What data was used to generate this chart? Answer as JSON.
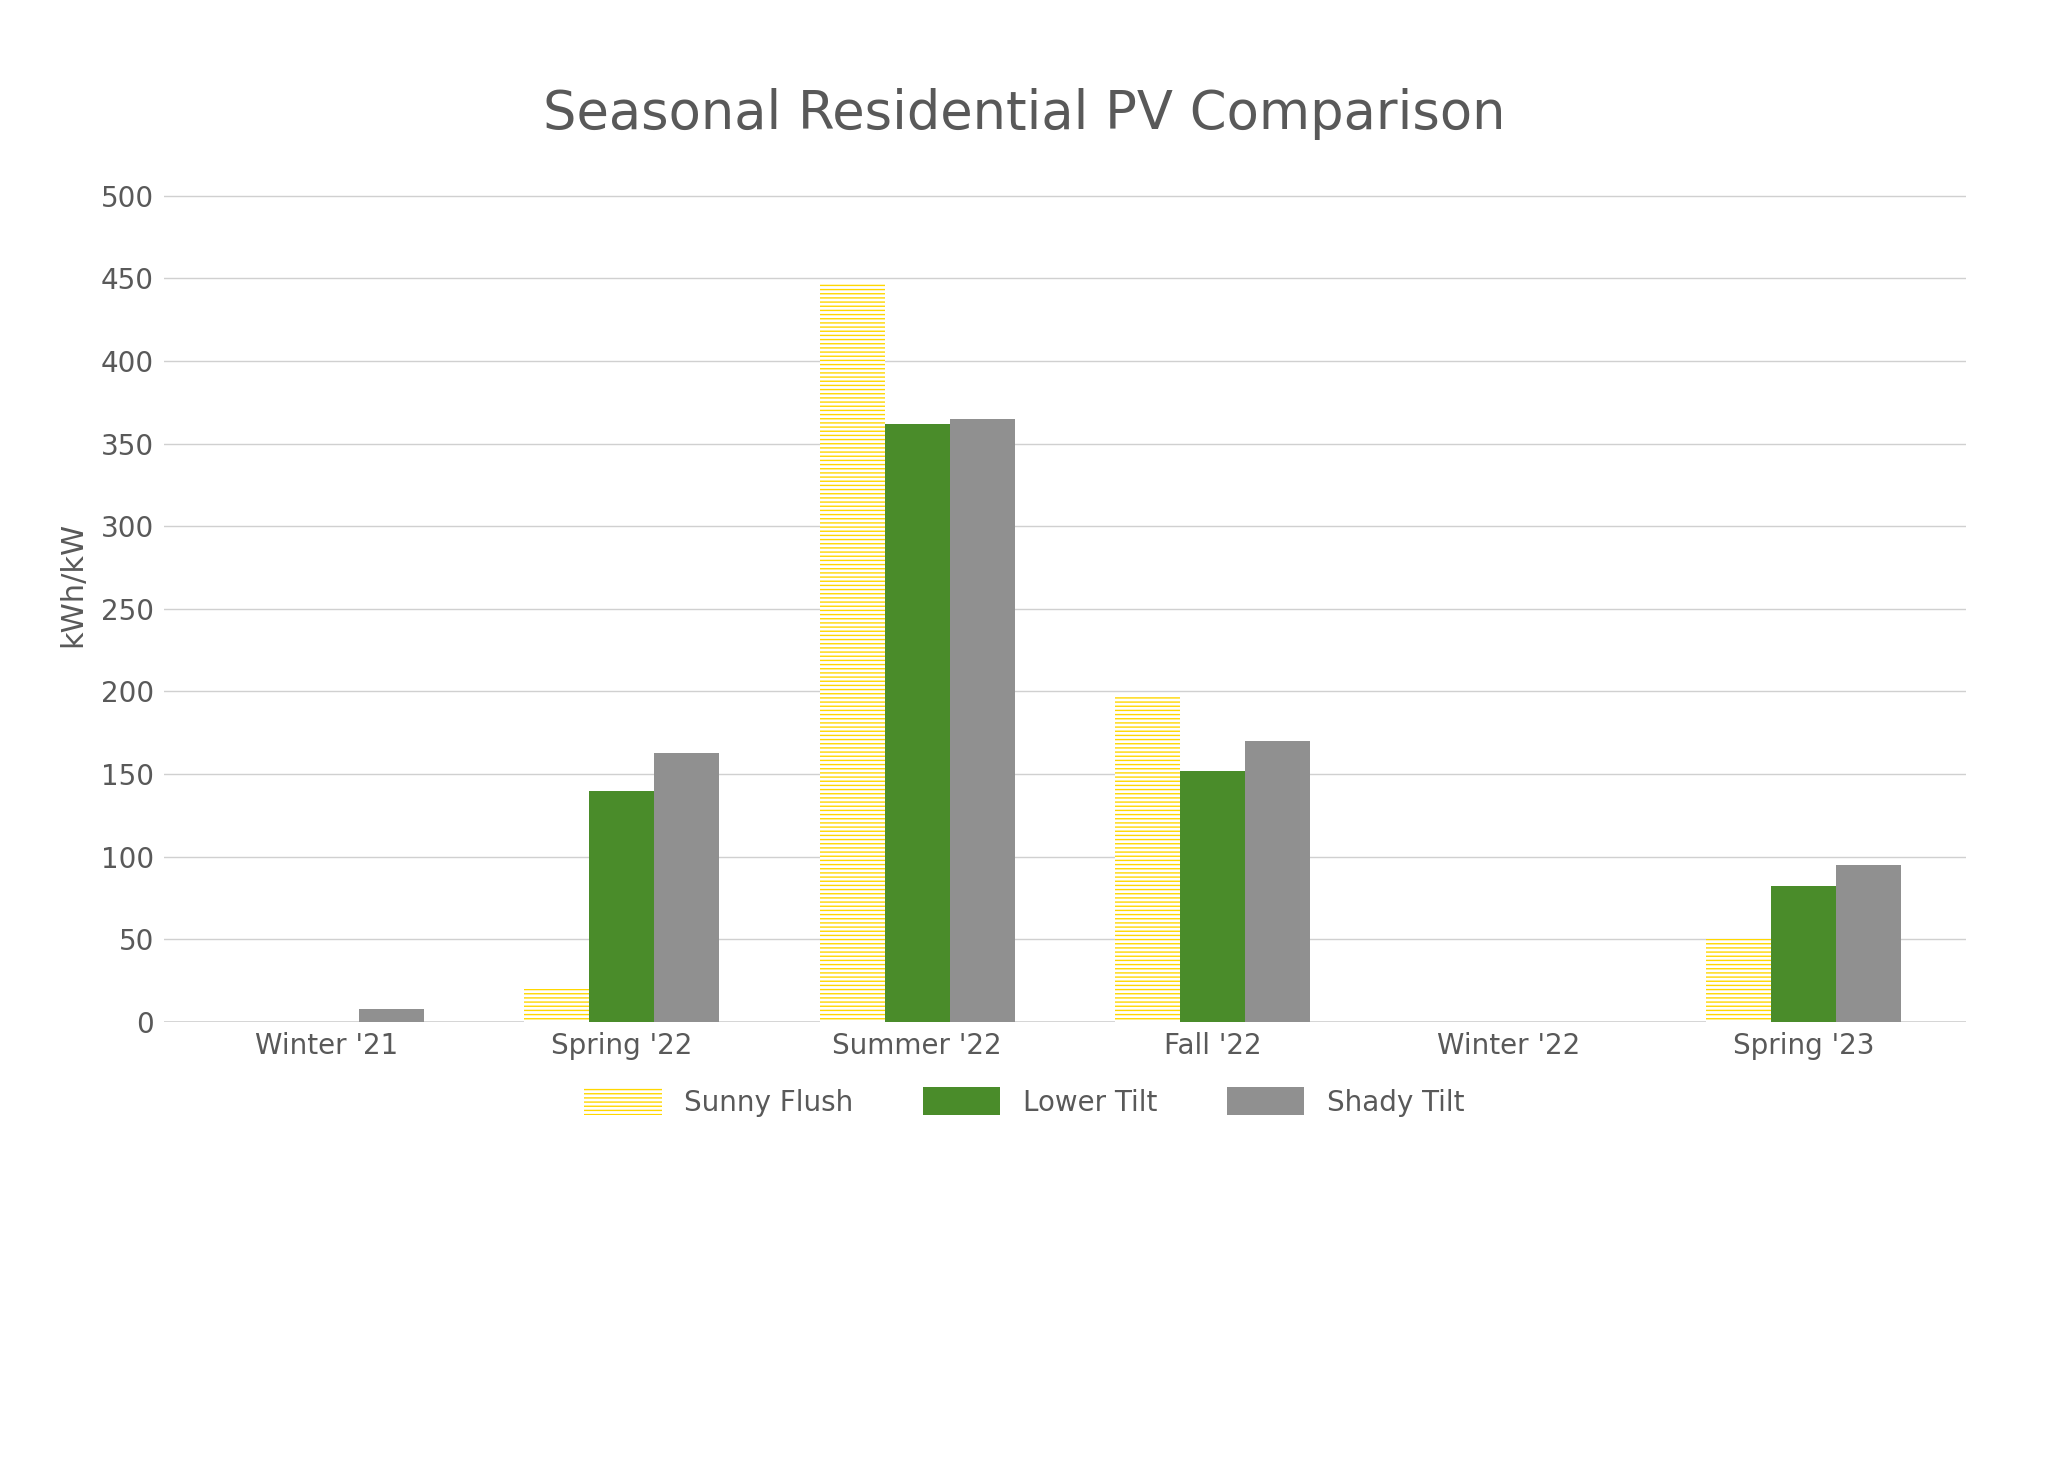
{
  "title": "Seasonal Residential PV Comparison",
  "categories": [
    "Winter '21",
    "Spring '22",
    "Summer '22",
    "Fall '22",
    "Winter '22",
    "Spring '23"
  ],
  "sunny_flush": [
    0,
    20,
    447,
    197,
    0,
    50
  ],
  "lower_tilt": [
    0,
    140,
    362,
    152,
    0,
    82
  ],
  "shady_tilt": [
    8,
    163,
    365,
    170,
    0,
    95
  ],
  "ylabel": "kWh/kW",
  "ylim": [
    0,
    530
  ],
  "yticks": [
    0,
    50,
    100,
    150,
    200,
    250,
    300,
    350,
    400,
    450,
    500
  ],
  "sunny_flush_color": "#FFD700",
  "sunny_flush_hatch_bg": "#FFFFFF",
  "lower_tilt_color": "#4A8C2A",
  "shady_tilt_color": "#909090",
  "background_color": "#FFFFFF",
  "grid_color": "#D0D0D0",
  "title_color": "#595959",
  "axis_label_color": "#595959",
  "tick_color": "#595959",
  "bar_width": 0.22,
  "title_fontsize": 38,
  "tick_fontsize": 20,
  "ylabel_fontsize": 22,
  "legend_fontsize": 20
}
